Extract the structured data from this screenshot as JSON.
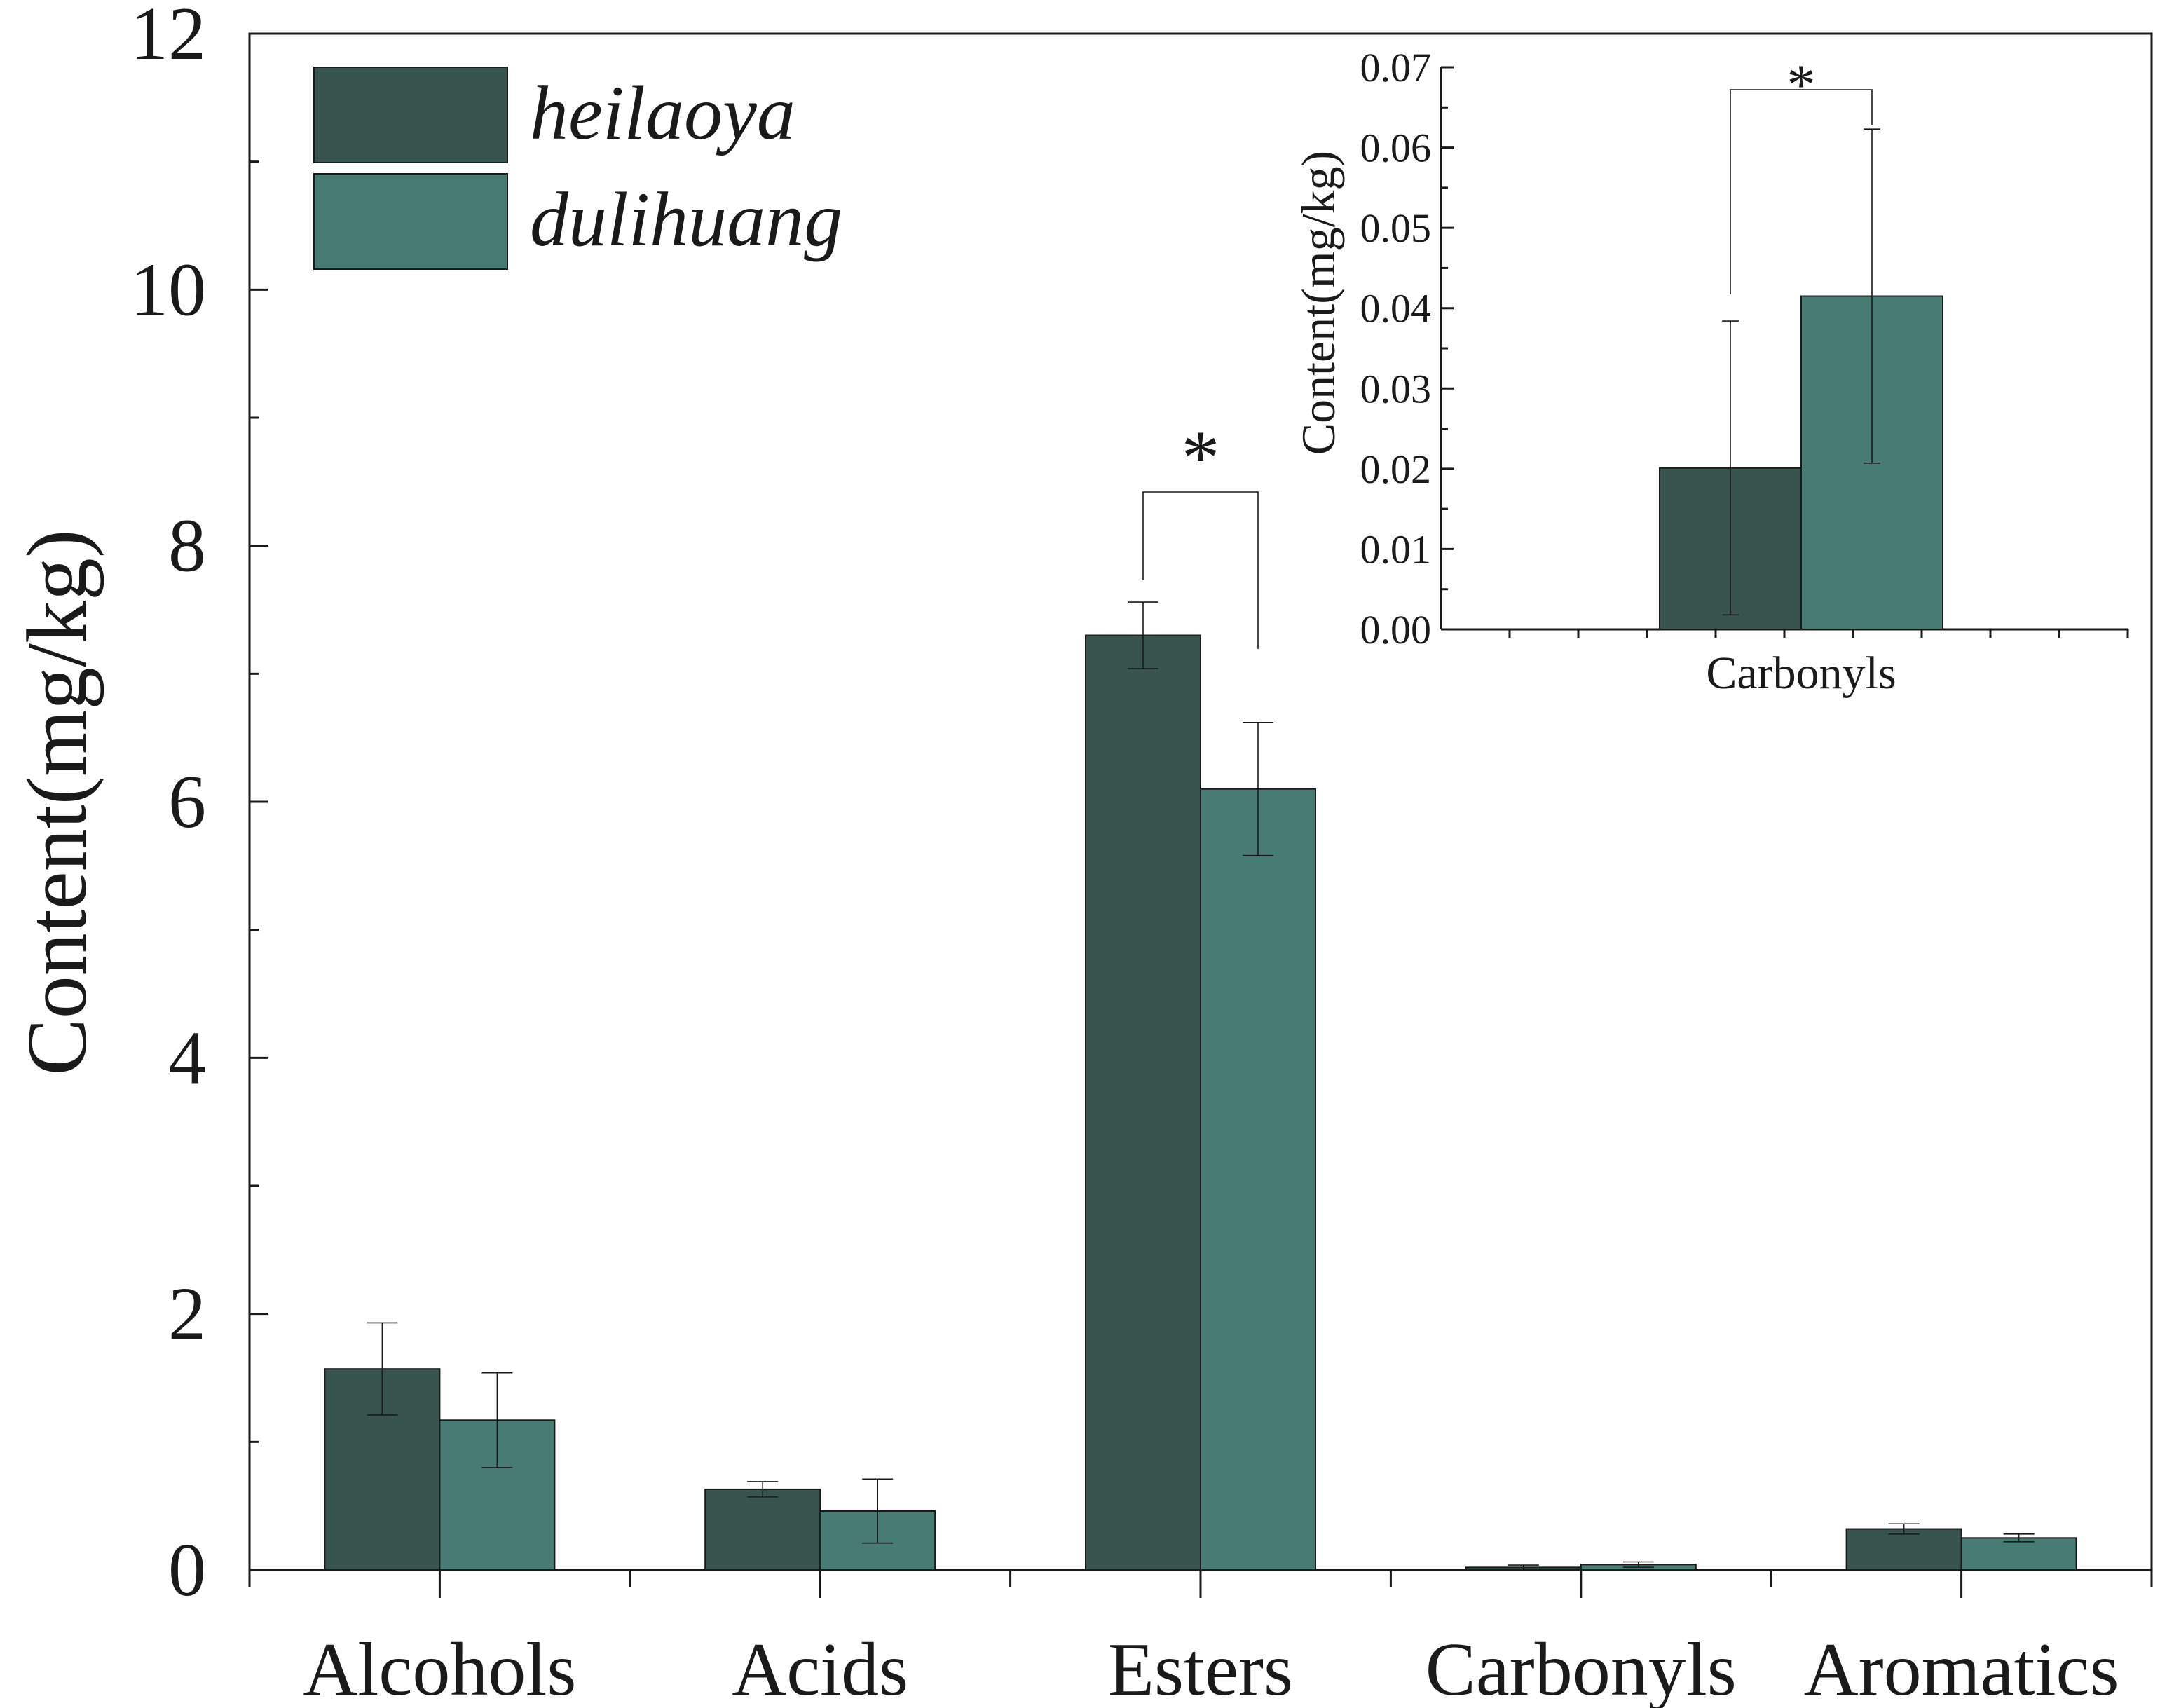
{
  "chart_data": [
    {
      "type": "bar",
      "categories": [
        "Alcohols",
        "Acids",
        "Esters",
        "Carbonyls",
        "Aromatics"
      ],
      "series": [
        {
          "name": "heilaoya",
          "color": "#38544e",
          "values": [
            1.57,
            0.63,
            7.3,
            0.02,
            0.32
          ],
          "errors": [
            0.36,
            0.06,
            0.26,
            0.018,
            0.04
          ]
        },
        {
          "name": "dulihuang",
          "color": "#477b74",
          "values": [
            1.17,
            0.46,
            6.1,
            0.042,
            0.25
          ],
          "errors": [
            0.37,
            0.25,
            0.52,
            0.021,
            0.03
          ]
        }
      ],
      "ylabel": "Content(mg/kg)",
      "xlabel": "",
      "ylim": [
        0,
        12
      ],
      "yticks": [
        "0",
        "2",
        "4",
        "6",
        "8",
        "10",
        "12"
      ],
      "legend": "top-left",
      "significance": [
        {
          "category": "Esters",
          "label": "*"
        }
      ]
    },
    {
      "type": "bar",
      "role": "inset",
      "categories": [
        "Carbonyls"
      ],
      "series": [
        {
          "name": "heilaoya",
          "color": "#38544e",
          "values": [
            0.0201
          ],
          "errors": [
            0.0183
          ]
        },
        {
          "name": "dulihuang",
          "color": "#477b74",
          "values": [
            0.0415
          ],
          "errors": [
            0.0208
          ]
        }
      ],
      "ylabel": "Content(mg/kg)",
      "ylim": [
        0,
        0.07
      ],
      "yticks": [
        "0.00",
        "0.01",
        "0.02",
        "0.03",
        "0.04",
        "0.05",
        "0.06",
        "0.07"
      ],
      "legend": "none",
      "significance": [
        {
          "category": "Carbonyls",
          "label": "*"
        }
      ]
    }
  ]
}
